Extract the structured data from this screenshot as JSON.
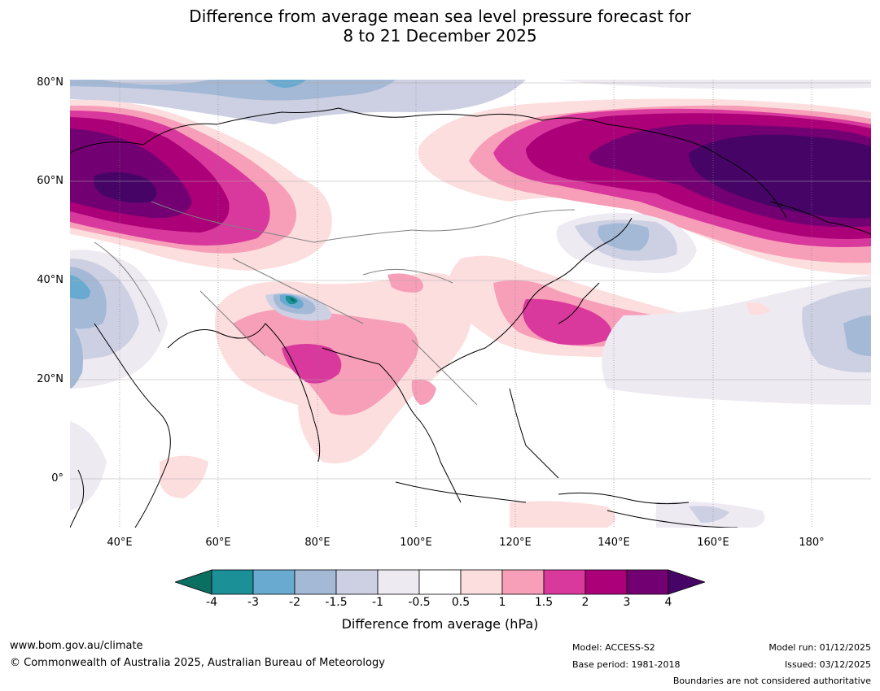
{
  "title": {
    "line1": "Difference from average mean sea level pressure forecast for",
    "line2": "8 to 21 December 2025"
  },
  "map": {
    "lat_labels": [
      "80°N",
      "60°N",
      "40°N",
      "20°N",
      "0°"
    ],
    "lon_labels": [
      "40°E",
      "60°E",
      "80°E",
      "100°E",
      "120°E",
      "140°E",
      "160°E",
      "180°"
    ],
    "extent": {
      "lon_min": 30,
      "lon_max": 192,
      "lat_min": -10,
      "lat_max": 80
    },
    "anomaly_centres": [
      {
        "name": "western-russia-high",
        "lon": 42,
        "lat": 61,
        "value": 4
      },
      {
        "name": "east-siberia-north-pacific-high",
        "lon": 175,
        "lat": 60,
        "value": 4
      },
      {
        "name": "japan-high",
        "lon": 135,
        "lat": 33,
        "value": 2
      },
      {
        "name": "india-high",
        "lon": 79,
        "lat": 23,
        "value": 2
      },
      {
        "name": "pamir-low",
        "lon": 76,
        "lat": 37,
        "value": -4
      }
    ]
  },
  "colorbar": {
    "title": "Difference from average (hPa)",
    "ticks": [
      "-4",
      "-3",
      "-2",
      "-1.5",
      "-1",
      "-0.5",
      "0.5",
      "1",
      "1.5",
      "2",
      "3",
      "4"
    ],
    "colors": [
      "#0a6e61",
      "#1b9097",
      "#69aad1",
      "#a4b9d6",
      "#cdd0e3",
      "#eeeaf2",
      "#ffffff",
      "#fddedf",
      "#f79fb8",
      "#d9389c",
      "#ab0077",
      "#730073",
      "#470467"
    ]
  },
  "footer": {
    "url": "www.bom.gov.au/climate",
    "copyright": "© Commonwealth of Australia 2025, Australian Bureau of Meteorology",
    "model": "Model: ACCESS-S2",
    "base_period": "Base period: 1981-2018",
    "model_run": "Model run: 01/12/2025",
    "issued": "Issued: 03/12/2025",
    "boundaries": "Boundaries are not considered authoritative"
  }
}
